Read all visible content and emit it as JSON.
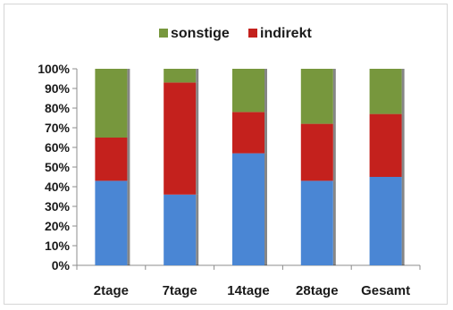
{
  "chart_data": {
    "type": "bar",
    "stacked": true,
    "percent": true,
    "categories": [
      "2tage",
      "7tage",
      "14tage",
      "28tage",
      "Gesamt"
    ],
    "series": [
      {
        "name": "",
        "color": "#4a86d4",
        "values": [
          43,
          36,
          57,
          43,
          45
        ]
      },
      {
        "name": "indirekt",
        "color": "#c4211d",
        "values": [
          22,
          57,
          21,
          29,
          32
        ]
      },
      {
        "name": "sonstige",
        "color": "#77973d",
        "values": [
          35,
          7,
          22,
          28,
          23
        ]
      }
    ],
    "legend": {
      "position": "top",
      "entries": [
        {
          "name": "sonstige",
          "color": "#77973d"
        },
        {
          "name": "indirekt",
          "color": "#c4211d"
        }
      ]
    },
    "ylim": [
      0,
      100
    ],
    "yticks": [
      "0%",
      "10%",
      "20%",
      "30%",
      "40%",
      "50%",
      "60%",
      "70%",
      "80%",
      "90%",
      "100%"
    ],
    "grid": false,
    "title": "",
    "xlabel": "",
    "ylabel": ""
  }
}
